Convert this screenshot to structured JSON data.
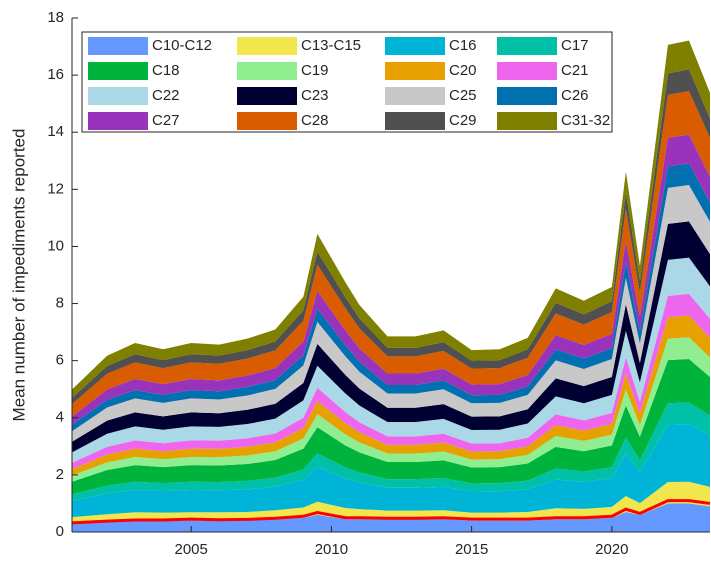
{
  "chart_data": {
    "type": "stacked_area",
    "ylabel": "Mean number of impediments reported",
    "x": [
      2000.75,
      2002,
      2003,
      2004,
      2005,
      2006,
      2007,
      2008,
      2009,
      2009.5,
      2010.5,
      2011,
      2012,
      2013,
      2014,
      2015,
      2016,
      2017,
      2018,
      2019,
      2020,
      2020.5,
      2021,
      2022,
      2022.75,
      2023.5
    ],
    "xlim": [
      2000.75,
      2023.5
    ],
    "xticks": [
      2005,
      2010,
      2015,
      2020
    ],
    "ylim": [
      0,
      18
    ],
    "yticks": [
      0,
      2,
      4,
      6,
      8,
      10,
      12,
      14,
      16,
      18
    ],
    "series": [
      {
        "name": "C10-C12",
        "color": "#6699ff",
        "values": [
          0.3,
          0.35,
          0.4,
          0.4,
          0.4,
          0.4,
          0.4,
          0.45,
          0.5,
          0.6,
          0.45,
          0.45,
          0.45,
          0.45,
          0.45,
          0.4,
          0.4,
          0.4,
          0.45,
          0.45,
          0.5,
          0.7,
          0.6,
          1.0,
          1.0,
          0.9
        ]
      },
      {
        "name": "C13-C15",
        "color": "#f2e64d",
        "values": [
          0.22,
          0.27,
          0.29,
          0.28,
          0.29,
          0.29,
          0.3,
          0.31,
          0.36,
          0.46,
          0.39,
          0.35,
          0.3,
          0.3,
          0.31,
          0.28,
          0.28,
          0.3,
          0.38,
          0.36,
          0.38,
          0.56,
          0.41,
          0.75,
          0.76,
          0.68
        ]
      },
      {
        "name": "C16",
        "color": "#00b4d8",
        "values": [
          0.58,
          0.73,
          0.78,
          0.75,
          0.78,
          0.77,
          0.79,
          0.83,
          0.97,
          1.23,
          1.03,
          0.94,
          0.8,
          0.8,
          0.82,
          0.74,
          0.75,
          0.8,
          1.01,
          0.95,
          1.01,
          1.49,
          1.09,
          2.01,
          2.02,
          1.81
        ]
      },
      {
        "name": "C17",
        "color": "#00c0a8",
        "values": [
          0.22,
          0.27,
          0.29,
          0.28,
          0.29,
          0.29,
          0.3,
          0.31,
          0.36,
          0.46,
          0.39,
          0.35,
          0.3,
          0.3,
          0.31,
          0.28,
          0.28,
          0.3,
          0.38,
          0.36,
          0.38,
          0.56,
          0.41,
          0.75,
          0.76,
          0.68
        ]
      },
      {
        "name": "C18",
        "color": "#00b33c",
        "values": [
          0.44,
          0.55,
          0.58,
          0.56,
          0.58,
          0.58,
          0.59,
          0.62,
          0.73,
          0.92,
          0.77,
          0.7,
          0.6,
          0.6,
          0.62,
          0.56,
          0.56,
          0.6,
          0.76,
          0.71,
          0.76,
          1.12,
          0.82,
          1.51,
          1.52,
          1.36
        ]
      },
      {
        "name": "C19",
        "color": "#90ee90",
        "values": [
          0.22,
          0.27,
          0.29,
          0.28,
          0.29,
          0.29,
          0.3,
          0.31,
          0.36,
          0.46,
          0.39,
          0.35,
          0.3,
          0.3,
          0.31,
          0.28,
          0.28,
          0.3,
          0.38,
          0.36,
          0.38,
          0.56,
          0.41,
          0.75,
          0.76,
          0.68
        ]
      },
      {
        "name": "C20",
        "color": "#e6a000",
        "values": [
          0.22,
          0.27,
          0.29,
          0.28,
          0.29,
          0.29,
          0.3,
          0.31,
          0.36,
          0.46,
          0.39,
          0.35,
          0.3,
          0.3,
          0.31,
          0.28,
          0.28,
          0.3,
          0.38,
          0.36,
          0.38,
          0.56,
          0.41,
          0.75,
          0.76,
          0.68
        ]
      },
      {
        "name": "C21",
        "color": "#ee66ee",
        "values": [
          0.22,
          0.27,
          0.29,
          0.28,
          0.29,
          0.29,
          0.3,
          0.31,
          0.36,
          0.46,
          0.39,
          0.35,
          0.3,
          0.3,
          0.31,
          0.28,
          0.28,
          0.3,
          0.38,
          0.36,
          0.38,
          0.56,
          0.41,
          0.75,
          0.76,
          0.68
        ]
      },
      {
        "name": "C22",
        "color": "#aad8e6",
        "values": [
          0.37,
          0.46,
          0.49,
          0.47,
          0.49,
          0.48,
          0.5,
          0.52,
          0.61,
          0.77,
          0.65,
          0.59,
          0.5,
          0.5,
          0.52,
          0.47,
          0.47,
          0.5,
          0.63,
          0.6,
          0.63,
          0.93,
          0.68,
          1.26,
          1.27,
          1.13
        ]
      },
      {
        "name": "C23",
        "color": "#000033",
        "values": [
          0.37,
          0.46,
          0.49,
          0.47,
          0.49,
          0.48,
          0.5,
          0.52,
          0.61,
          0.77,
          0.65,
          0.59,
          0.5,
          0.5,
          0.52,
          0.47,
          0.47,
          0.5,
          0.63,
          0.6,
          0.63,
          0.93,
          0.68,
          1.26,
          1.27,
          1.13
        ]
      },
      {
        "name": "C25",
        "color": "#c8c8c8",
        "values": [
          0.37,
          0.46,
          0.49,
          0.47,
          0.49,
          0.48,
          0.5,
          0.52,
          0.61,
          0.77,
          0.65,
          0.59,
          0.5,
          0.5,
          0.52,
          0.47,
          0.47,
          0.5,
          0.63,
          0.6,
          0.63,
          0.93,
          0.68,
          1.26,
          1.27,
          1.13
        ]
      },
      {
        "name": "C26",
        "color": "#0070b0",
        "values": [
          0.22,
          0.27,
          0.29,
          0.28,
          0.29,
          0.29,
          0.3,
          0.31,
          0.36,
          0.46,
          0.39,
          0.35,
          0.3,
          0.3,
          0.31,
          0.28,
          0.28,
          0.3,
          0.38,
          0.36,
          0.38,
          0.56,
          0.41,
          0.75,
          0.76,
          0.68
        ]
      },
      {
        "name": "C27",
        "color": "#9933bb",
        "values": [
          0.29,
          0.36,
          0.39,
          0.38,
          0.39,
          0.38,
          0.4,
          0.42,
          0.48,
          0.62,
          0.52,
          0.47,
          0.4,
          0.4,
          0.41,
          0.37,
          0.38,
          0.4,
          0.5,
          0.48,
          0.5,
          0.74,
          0.54,
          1.0,
          1.01,
          0.9
        ]
      },
      {
        "name": "C28",
        "color": "#d95c00",
        "values": [
          0.44,
          0.55,
          0.58,
          0.56,
          0.58,
          0.58,
          0.59,
          0.62,
          0.73,
          0.92,
          0.77,
          0.7,
          0.6,
          0.6,
          0.62,
          0.56,
          0.56,
          0.6,
          0.76,
          0.71,
          0.76,
          1.12,
          0.82,
          1.51,
          1.52,
          1.36
        ]
      },
      {
        "name": "C29",
        "color": "#505050",
        "values": [
          0.22,
          0.27,
          0.29,
          0.28,
          0.29,
          0.29,
          0.3,
          0.31,
          0.36,
          0.46,
          0.39,
          0.35,
          0.3,
          0.3,
          0.31,
          0.28,
          0.28,
          0.3,
          0.38,
          0.36,
          0.38,
          0.56,
          0.41,
          0.75,
          0.76,
          0.68
        ]
      },
      {
        "name": "C31-32",
        "color": "#808000",
        "values": [
          0.29,
          0.36,
          0.39,
          0.38,
          0.39,
          0.38,
          0.4,
          0.42,
          0.48,
          0.62,
          0.52,
          0.47,
          0.4,
          0.4,
          0.41,
          0.37,
          0.38,
          0.4,
          0.5,
          0.48,
          0.5,
          0.74,
          0.54,
          1.0,
          1.01,
          0.9
        ]
      }
    ],
    "line": {
      "color": "#ff0000",
      "values": [
        0.32,
        0.38,
        0.42,
        0.42,
        0.45,
        0.43,
        0.44,
        0.48,
        0.55,
        0.68,
        0.5,
        0.5,
        0.48,
        0.48,
        0.5,
        0.45,
        0.45,
        0.45,
        0.5,
        0.5,
        0.55,
        0.8,
        0.65,
        1.1,
        1.1,
        1.0
      ]
    }
  }
}
